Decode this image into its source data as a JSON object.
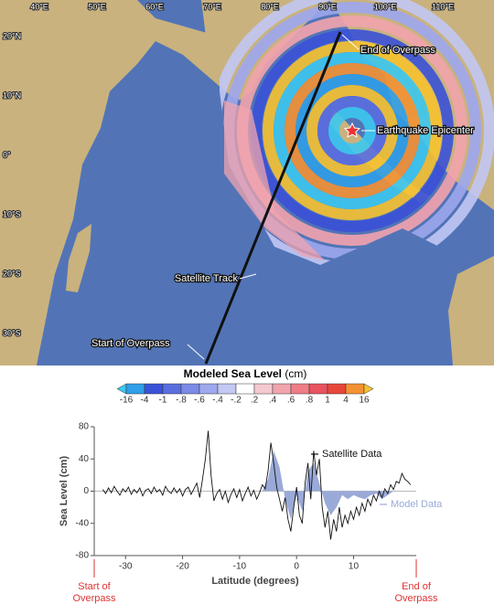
{
  "map": {
    "lon_labels": [
      "40°E",
      "50°E",
      "60°E",
      "70°E",
      "80°E",
      "90°E",
      "100°E",
      "110°E"
    ],
    "lat_labels": [
      "20°N",
      "10°N",
      "0°",
      "10°S",
      "20°S",
      "30°S"
    ],
    "annotations": {
      "end": "End of Overpass",
      "epicenter": "Earthquake Epicenter",
      "track": "Satellite Track",
      "start": "Start of Overpass"
    }
  },
  "colorbar": {
    "title": "Modeled Sea Level",
    "unit": "(cm)",
    "colors": [
      "#3cc8f0",
      "#2f9fe8",
      "#3a52d8",
      "#5a6ee0",
      "#7b8ae6",
      "#9ea8ee",
      "#c3c8f4",
      "#ffffff",
      "#f6c9cf",
      "#f2a4ad",
      "#ee7d86",
      "#e9525e",
      "#e8463a",
      "#f39233",
      "#f7c22f"
    ],
    "ticks": [
      -16,
      -4,
      -1,
      {
        "value": -0.8,
        "label": "-.8"
      },
      {
        "value": -0.6,
        "label": "-.6"
      },
      {
        "value": -0.4,
        "label": "-.4"
      },
      {
        "value": -0.2,
        "label": "-.2"
      },
      {
        "value": 0.2,
        "label": ".2"
      },
      {
        "value": 0.4,
        "label": ".4"
      },
      {
        "value": 0.6,
        "label": ".6"
      },
      {
        "value": 0.8,
        "label": ".8"
      },
      1,
      4,
      16
    ]
  },
  "chart_data": {
    "type": "line",
    "xlabel": "Latitude (degrees)",
    "ylabel": "Sea Level (cm)",
    "xlim": [
      -35.5,
      21
    ],
    "xticks": [
      -30,
      -20,
      -10,
      0,
      10
    ],
    "ylim": [
      -80,
      80
    ],
    "yticks": [
      80,
      40,
      0,
      -40,
      -80
    ],
    "start_label": [
      "Start of",
      "Overpass"
    ],
    "end_label": [
      "End of",
      "Overpass"
    ],
    "series": [
      {
        "name": "Model Data",
        "color": "#9aaad8",
        "style": "area",
        "x": [
          -6,
          -5,
          -4,
          -3,
          -2,
          -1,
          0,
          1,
          2,
          3,
          4,
          5,
          6,
          7,
          8,
          9,
          10,
          11,
          12,
          13,
          14,
          15,
          16,
          17
        ],
        "values": [
          0,
          15,
          50,
          30,
          -10,
          -35,
          -5,
          -25,
          25,
          35,
          10,
          -15,
          -30,
          -20,
          -5,
          -10,
          -5,
          -8,
          -10,
          -5,
          -3,
          -10,
          -5,
          0
        ]
      },
      {
        "name": "Satellite Data",
        "color": "#111111",
        "style": "line",
        "x": [
          -34,
          -33.5,
          -33,
          -32.5,
          -32,
          -31.5,
          -31,
          -30.5,
          -30,
          -29.5,
          -29,
          -28.5,
          -28,
          -27.5,
          -27,
          -26.5,
          -26,
          -25.5,
          -25,
          -24.5,
          -24,
          -23.5,
          -23,
          -22.5,
          -22,
          -21.5,
          -21,
          -20.5,
          -20,
          -19.5,
          -19,
          -18.5,
          -18,
          -17.5,
          -17,
          -16.5,
          -16,
          -15.5,
          -15,
          -14.5,
          -14,
          -13.5,
          -13,
          -12.5,
          -12,
          -11.5,
          -11,
          -10.5,
          -10,
          -9.5,
          -9,
          -8.5,
          -8,
          -7.5,
          -7,
          -6.5,
          -6,
          -5.5,
          -5,
          -4.5,
          -4,
          -3.5,
          -3,
          -2.5,
          -2,
          -1.5,
          -1,
          -0.5,
          0,
          0.5,
          1,
          1.5,
          2,
          2.5,
          3,
          3.5,
          4,
          4.5,
          5,
          5.5,
          6,
          6.5,
          7,
          7.5,
          8,
          8.5,
          9,
          9.5,
          10,
          10.5,
          11,
          11.5,
          12,
          12.5,
          13,
          13.5,
          14,
          14.5,
          15,
          15.5,
          16,
          16.5,
          17,
          17.5,
          18,
          18.5,
          19,
          19.5,
          20
        ],
        "values": [
          2,
          -3,
          4,
          -2,
          6,
          0,
          -5,
          3,
          -1,
          5,
          -4,
          2,
          -2,
          4,
          -6,
          1,
          3,
          -3,
          5,
          -1,
          2,
          -5,
          6,
          0,
          -3,
          4,
          -2,
          3,
          -6,
          2,
          5,
          -4,
          3,
          10,
          -8,
          15,
          40,
          75,
          20,
          -12,
          -3,
          2,
          -10,
          0,
          -14,
          -4,
          3,
          -8,
          2,
          -12,
          -3,
          5,
          -6,
          1,
          -10,
          -2,
          8,
          3,
          25,
          60,
          35,
          5,
          -10,
          -25,
          -8,
          -35,
          -50,
          -20,
          5,
          -30,
          -40,
          10,
          35,
          -10,
          50,
          20,
          40,
          -20,
          -45,
          -25,
          -60,
          -35,
          -50,
          -20,
          -45,
          -30,
          -40,
          -25,
          -35,
          -20,
          -30,
          -15,
          -25,
          -10,
          -18,
          -5,
          -12,
          0,
          -8,
          3,
          -3,
          8,
          2,
          12,
          10,
          22,
          15,
          12,
          8
        ]
      }
    ]
  }
}
